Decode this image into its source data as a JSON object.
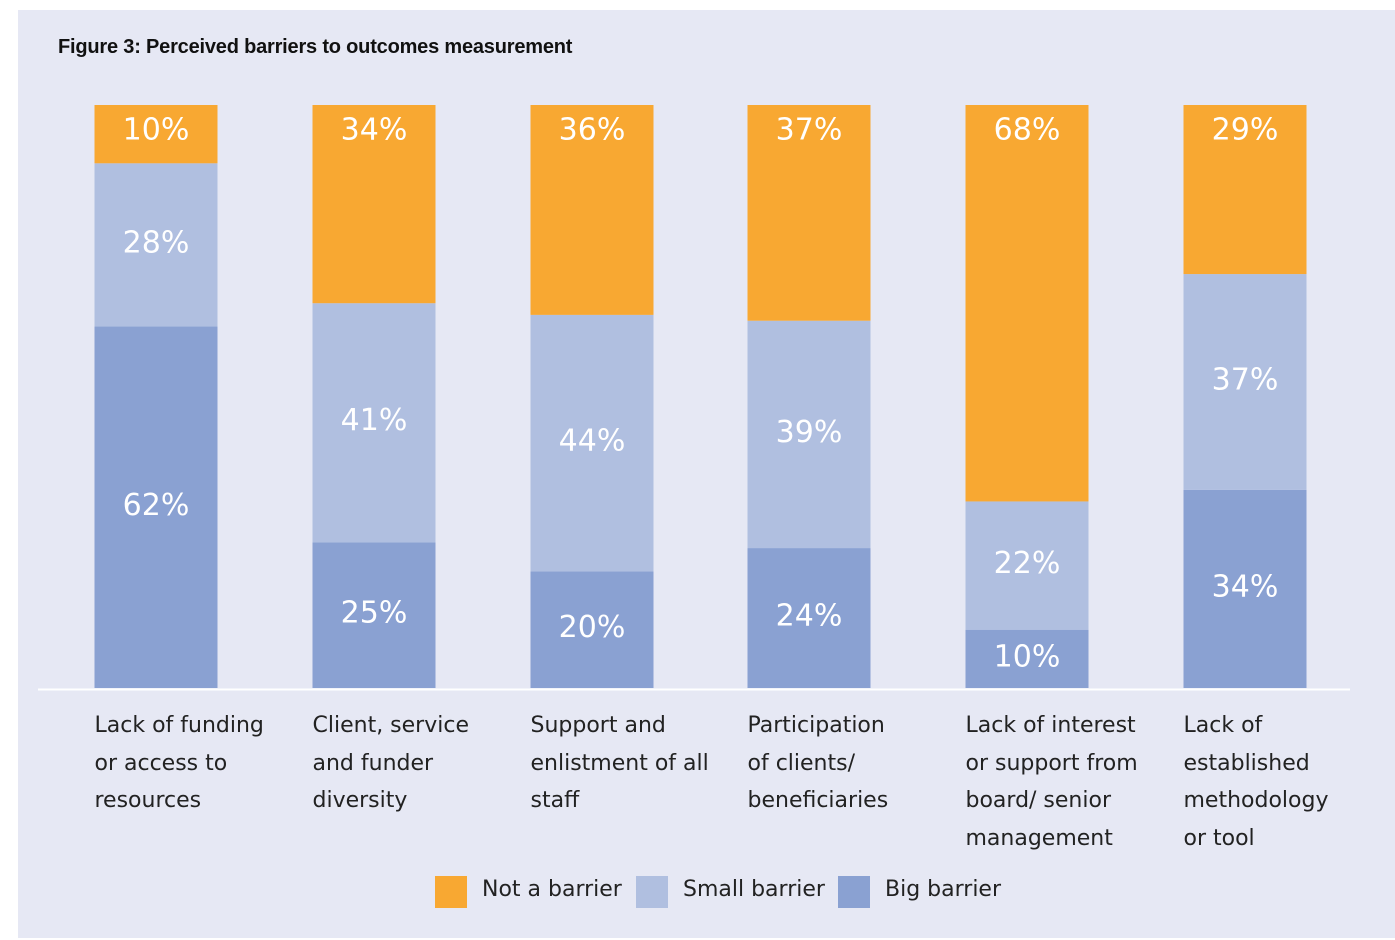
{
  "title": "Figure 3: Perceived barriers to outcomes measurement",
  "chart_data": {
    "type": "bar",
    "stacked": true,
    "orientation": "vertical",
    "categories": [
      [
        "Lack of funding",
        "or access to",
        "resources"
      ],
      [
        "Client, service",
        "and funder",
        "diversity"
      ],
      [
        "Support and",
        "enlistment of all",
        "staff"
      ],
      [
        "Participation",
        "of clients/",
        "beneficiaries"
      ],
      [
        "Lack of interest",
        "or support from",
        "board/ senior",
        "management"
      ],
      [
        "Lack of",
        "established",
        "methodology",
        "or tool"
      ]
    ],
    "series": [
      {
        "name": "Big barrier",
        "values": [
          62,
          25,
          20,
          24,
          10,
          34
        ],
        "labels": [
          "62%",
          "25%",
          "20%",
          "24%",
          "10%",
          "34%"
        ],
        "color": "#8aa1d2"
      },
      {
        "name": "Small barrier",
        "values": [
          28,
          41,
          44,
          39,
          22,
          37
        ],
        "labels": [
          "28%",
          "41%",
          "44%",
          "39%",
          "22%",
          "37%"
        ],
        "color": "#b0bfe0"
      },
      {
        "name": "Not a barrier",
        "values": [
          10,
          34,
          36,
          37,
          68,
          29
        ],
        "labels": [
          "10%",
          "34%",
          "36%",
          "37%",
          "68%",
          "29%"
        ],
        "color": "#f8a832"
      }
    ],
    "legend": {
      "position": "bottom",
      "order": [
        "Not a barrier",
        "Small barrier",
        "Big barrier"
      ]
    },
    "value_axis": {
      "visible": false,
      "range": [
        0,
        100
      ]
    },
    "grid": false,
    "xlabel": "",
    "ylabel": ""
  }
}
